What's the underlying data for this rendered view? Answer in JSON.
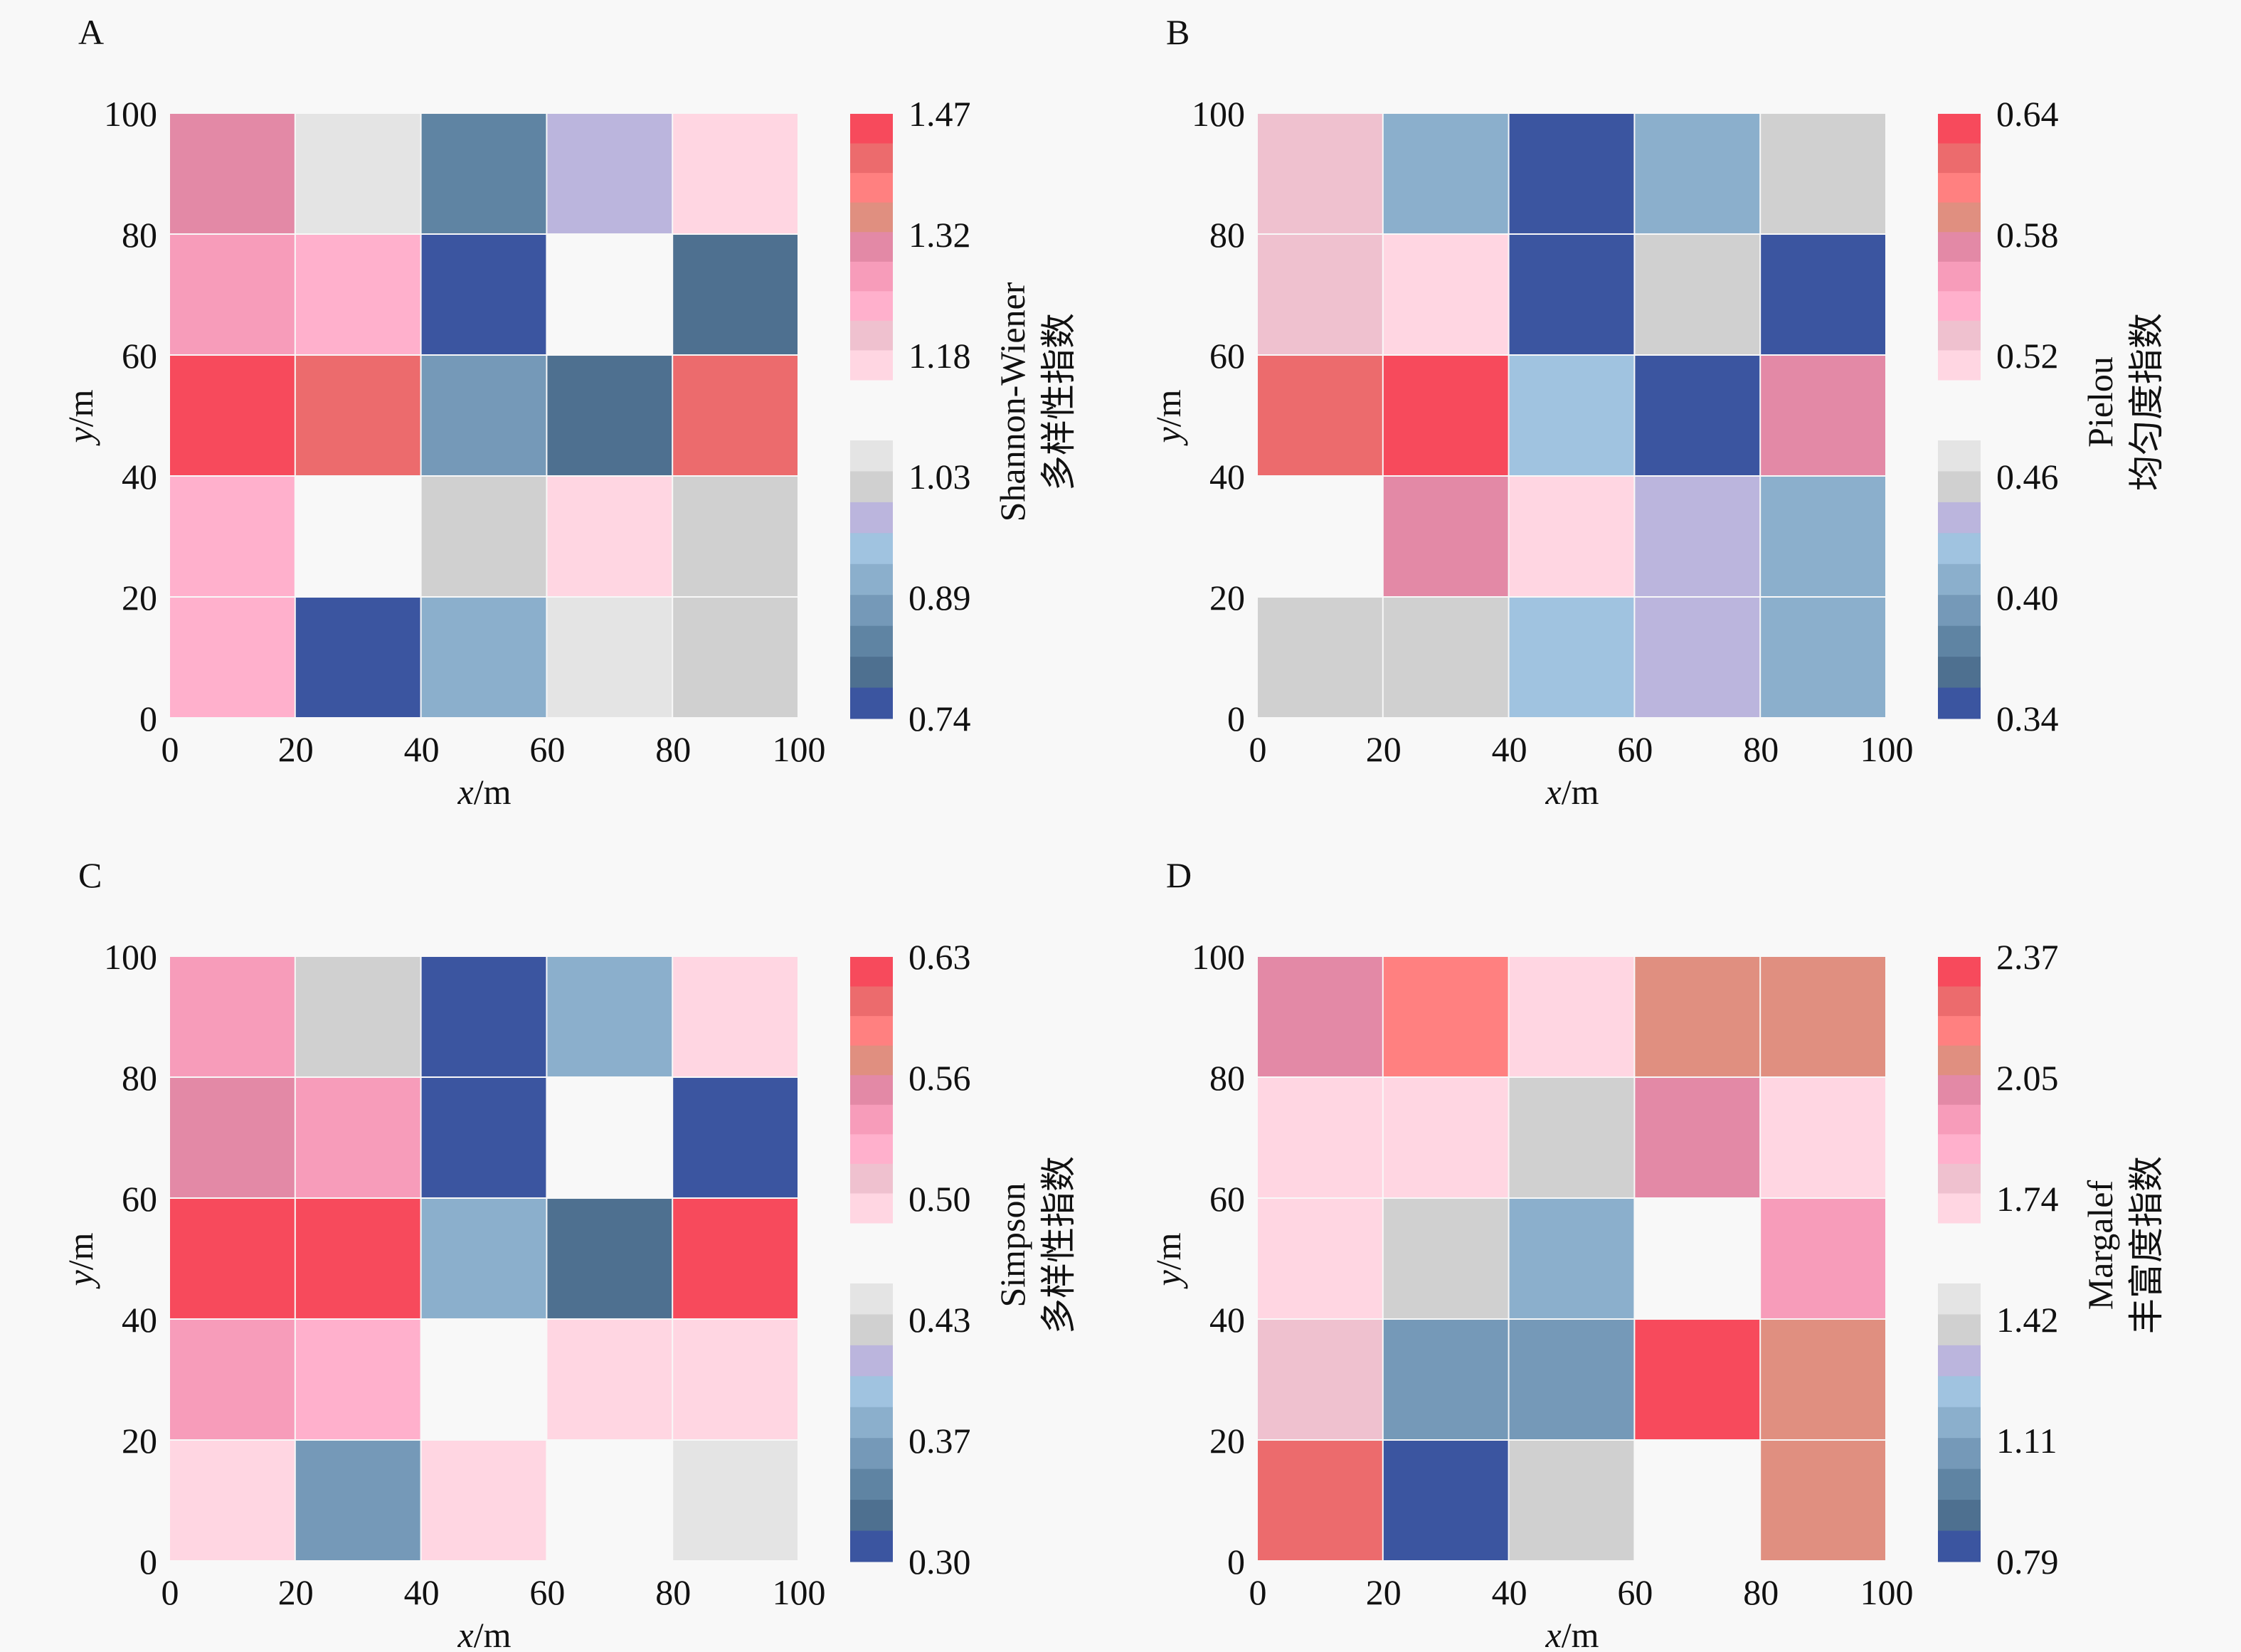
{
  "figure": {
    "background": "#f8f8f8",
    "colormap": {
      "low_to_high": [
        "#3b55a0",
        "#4e7090",
        "#5f84a3",
        "#7599b8",
        "#8bafcc",
        "#a0c3e0",
        "#bbb5dd",
        "#d0d0d0",
        "#e4e4e4",
        "#ffd6e2",
        "#efc1cf",
        "#ffb0cc",
        "#f79cba",
        "#e389a6",
        "#e08f80",
        "#ff8080",
        "#ec6b6d",
        "#f74a5c"
      ],
      "gap_color": "#f8f8f8"
    }
  },
  "chart_data": [
    {
      "type": "heatmap",
      "panel": "A",
      "title": "",
      "xlabel": "x/m",
      "ylabel": "y/m",
      "colorbar_label": [
        "Shannon-Wiener",
        "多样性指数"
      ],
      "x_ticks": [
        "0",
        "20",
        "40",
        "60",
        "80",
        "100"
      ],
      "y_ticks": [
        "0",
        "20",
        "40",
        "60",
        "80",
        "100"
      ],
      "xlim": [
        0,
        100
      ],
      "ylim": [
        0,
        100
      ],
      "x_bins": [
        0,
        20,
        40,
        60,
        80,
        100
      ],
      "y_bins": [
        0,
        20,
        40,
        60,
        80,
        100
      ],
      "colorbar_ticks": [
        "0.74",
        "0.89",
        "1.03",
        "1.18",
        "1.32",
        "1.47"
      ],
      "vmin": 0.74,
      "vmax": 1.47,
      "rows_top_to_bottom": [
        [
          1.29,
          1.08,
          0.85,
          1.01,
          1.14
        ],
        [
          1.25,
          1.21,
          0.76,
          null,
          0.8
        ],
        [
          1.45,
          1.41,
          0.89,
          0.8,
          1.41
        ],
        [
          1.21,
          null,
          1.04,
          1.14,
          1.04
        ],
        [
          1.21,
          0.76,
          0.93,
          1.08,
          1.04
        ]
      ]
    },
    {
      "type": "heatmap",
      "panel": "B",
      "title": "",
      "xlabel": "x/m",
      "ylabel": "y/m",
      "colorbar_label": [
        "Pielou",
        "均匀度指数"
      ],
      "x_ticks": [
        "0",
        "20",
        "40",
        "60",
        "80",
        "100"
      ],
      "y_ticks": [
        "0",
        "20",
        "40",
        "60",
        "80",
        "100"
      ],
      "xlim": [
        0,
        100
      ],
      "ylim": [
        0,
        100
      ],
      "x_bins": [
        0,
        20,
        40,
        60,
        80,
        100
      ],
      "y_bins": [
        0,
        20,
        40,
        60,
        80,
        100
      ],
      "colorbar_ticks": [
        "0.34",
        "0.40",
        "0.46",
        "0.52",
        "0.58",
        "0.64"
      ],
      "vmin": 0.34,
      "vmax": 0.64,
      "rows_top_to_bottom": [
        [
          0.52,
          0.42,
          0.35,
          0.41,
          0.47
        ],
        [
          0.52,
          0.5,
          0.34,
          0.47,
          0.34
        ],
        [
          0.62,
          0.63,
          0.44,
          0.34,
          0.56
        ],
        [
          null,
          0.57,
          0.5,
          0.45,
          0.41
        ],
        [
          0.47,
          0.47,
          0.44,
          0.45,
          0.41
        ]
      ]
    },
    {
      "type": "heatmap",
      "panel": "C",
      "title": "",
      "xlabel": "x/m",
      "ylabel": "y/m",
      "colorbar_label": [
        "Simpson",
        "多样性指数"
      ],
      "x_ticks": [
        "0",
        "20",
        "40",
        "60",
        "80",
        "100"
      ],
      "y_ticks": [
        "0",
        "20",
        "40",
        "60",
        "80",
        "100"
      ],
      "xlim": [
        0,
        100
      ],
      "ylim": [
        0,
        100
      ],
      "x_bins": [
        0,
        20,
        40,
        60,
        80,
        100
      ],
      "y_bins": [
        0,
        20,
        40,
        60,
        80,
        100
      ],
      "colorbar_ticks": [
        "0.30",
        "0.37",
        "0.43",
        "0.50",
        "0.56",
        "0.63"
      ],
      "vmin": 0.3,
      "vmax": 0.63,
      "rows_top_to_bottom": [
        [
          0.53,
          0.44,
          0.31,
          0.38,
          0.48
        ],
        [
          0.55,
          0.53,
          0.31,
          null,
          0.31
        ],
        [
          0.62,
          0.62,
          0.38,
          0.33,
          0.62
        ],
        [
          0.53,
          0.51,
          null,
          0.48,
          0.48
        ],
        [
          0.48,
          0.36,
          0.48,
          null,
          0.46
        ]
      ]
    },
    {
      "type": "heatmap",
      "panel": "D",
      "title": "",
      "xlabel": "x/m",
      "ylabel": "y/m",
      "colorbar_label": [
        "Margalef",
        "丰富度指数"
      ],
      "x_ticks": [
        "0",
        "20",
        "40",
        "60",
        "80",
        "100"
      ],
      "y_ticks": [
        "0",
        "20",
        "40",
        "60",
        "80",
        "100"
      ],
      "xlim": [
        0,
        100
      ],
      "ylim": [
        0,
        100
      ],
      "x_bins": [
        0,
        20,
        40,
        60,
        80,
        100
      ],
      "y_bins": [
        0,
        20,
        40,
        60,
        80,
        100
      ],
      "colorbar_ticks": [
        "0.79",
        "1.11",
        "1.42",
        "1.74",
        "2.05",
        "2.37"
      ],
      "vmin": 0.79,
      "vmax": 2.37,
      "rows_top_to_bottom": [
        [
          1.97,
          2.18,
          1.66,
          2.05,
          2.05
        ],
        [
          1.66,
          1.66,
          1.47,
          1.97,
          1.66
        ],
        [
          1.66,
          1.47,
          1.19,
          null,
          1.88
        ],
        [
          1.74,
          1.1,
          1.1,
          2.33,
          2.05
        ],
        [
          2.25,
          0.83,
          1.47,
          null,
          2.05
        ]
      ]
    }
  ]
}
